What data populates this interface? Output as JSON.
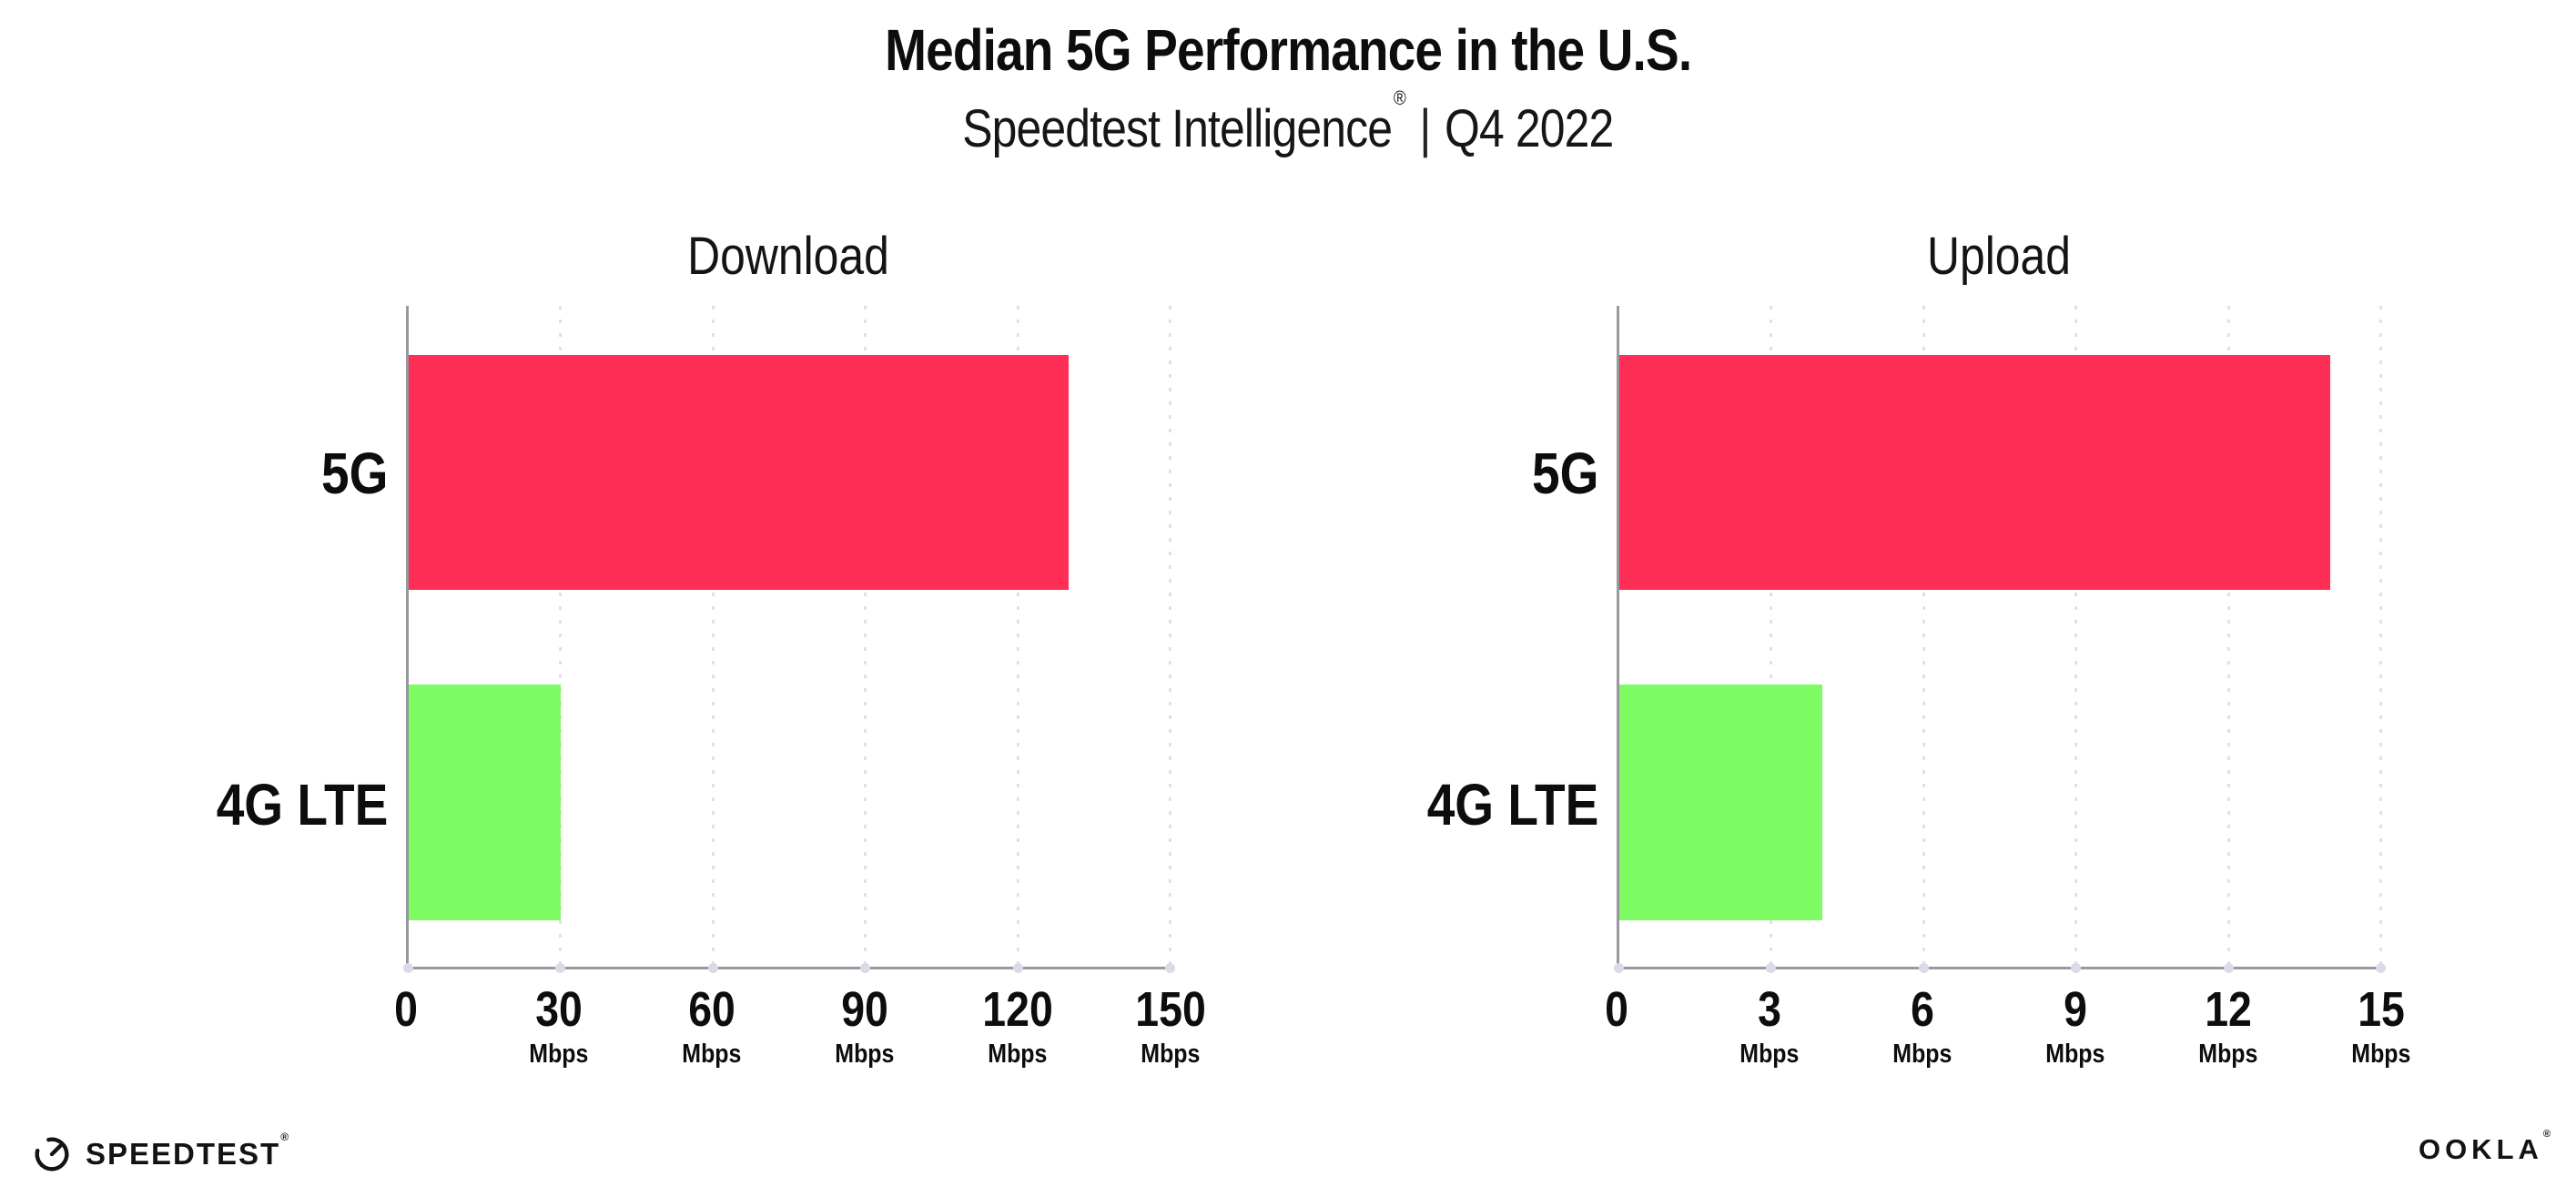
{
  "header": {
    "title": "Median 5G Performance in the U.S.",
    "subtitle_brand": "Speedtest Intelligence",
    "subtitle_reg": "®",
    "subtitle_separator": "|",
    "subtitle_period": "Q4 2022"
  },
  "footer": {
    "speedtest_label": "SPEEDTEST",
    "speedtest_reg": "®",
    "ookla_label": "OOKLA",
    "ookla_reg": "®"
  },
  "colors": {
    "bar_5g": "#FF2E56",
    "bar_4g_lte": "#7DFC64",
    "axis_line": "#98989e",
    "gridline_dots": "#dfe0ea",
    "text": "#111111"
  },
  "chart_data": [
    {
      "type": "bar",
      "orientation": "horizontal",
      "title": "Download",
      "categories": [
        "5G",
        "4G LTE"
      ],
      "values": [
        130,
        30
      ],
      "unit": "Mbps",
      "xlabel": "",
      "ylabel": "",
      "xlim": [
        0,
        150
      ],
      "xticks": [
        0,
        30,
        60,
        90,
        120,
        150
      ],
      "bar_colors": [
        "#FF2E56",
        "#7DFC64"
      ],
      "grid": "vertical-dotted",
      "legend": "none"
    },
    {
      "type": "bar",
      "orientation": "horizontal",
      "title": "Upload",
      "categories": [
        "5G",
        "4G LTE"
      ],
      "values": [
        14,
        4
      ],
      "unit": "Mbps",
      "xlabel": "",
      "ylabel": "",
      "xlim": [
        0,
        15
      ],
      "xticks": [
        0,
        3,
        6,
        9,
        12,
        15
      ],
      "bar_colors": [
        "#FF2E56",
        "#7DFC64"
      ],
      "grid": "vertical-dotted",
      "legend": "none"
    }
  ]
}
